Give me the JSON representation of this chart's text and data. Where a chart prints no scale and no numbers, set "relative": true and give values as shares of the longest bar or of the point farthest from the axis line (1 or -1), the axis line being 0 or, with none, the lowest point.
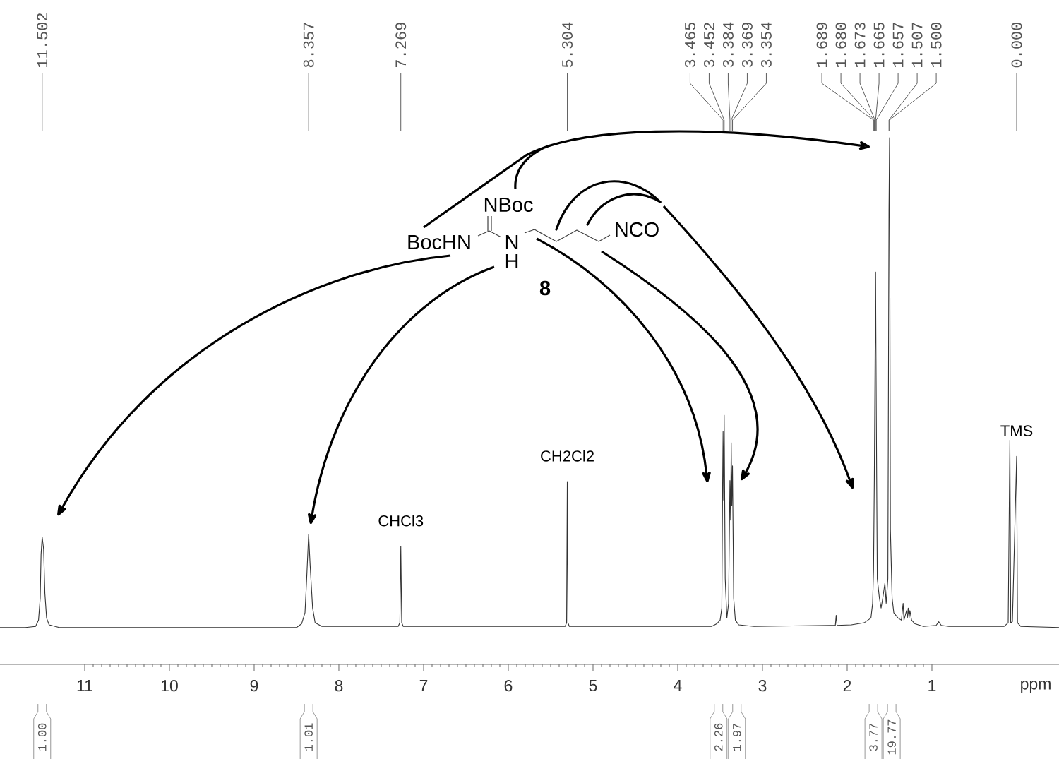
{
  "chart_data": {
    "type": "line",
    "relative": true,
    "xlabel": "ppm",
    "xlim": [
      12.0,
      -0.5
    ],
    "xticks": [
      1,
      2,
      3,
      4,
      5,
      6,
      7,
      8,
      9,
      10,
      11
    ],
    "color": "#333333",
    "x": [
      12.0,
      11.7,
      11.58,
      11.545,
      11.525,
      11.515,
      11.502,
      11.485,
      11.47,
      11.45,
      11.42,
      11.3,
      8.5,
      8.44,
      8.4,
      8.38,
      8.357,
      8.34,
      8.31,
      8.28,
      8.2,
      7.3,
      7.28,
      7.269,
      7.258,
      7.24,
      5.33,
      5.312,
      5.304,
      5.296,
      5.28,
      3.6,
      3.54,
      3.5,
      3.48,
      3.47,
      3.465,
      3.458,
      3.452,
      3.44,
      3.42,
      3.4,
      3.384,
      3.376,
      3.369,
      3.362,
      3.354,
      3.34,
      3.32,
      3.28,
      3.1,
      2.2,
      2.14,
      2.13,
      2.12,
      1.95,
      1.8,
      1.72,
      1.7,
      1.689,
      1.68,
      1.673,
      1.665,
      1.657,
      1.645,
      1.62,
      1.6,
      1.58,
      1.555,
      1.54,
      1.52,
      1.507,
      1.5,
      1.49,
      1.47,
      1.45,
      1.4,
      1.36,
      1.34,
      1.33,
      1.3,
      1.29,
      1.28,
      1.27,
      1.26,
      1.24,
      1.2,
      1.1,
      0.95,
      0.92,
      0.89,
      0.8,
      0.15,
      0.1,
      0.08,
      0.07,
      0.05,
      0.0,
      -0.01,
      -0.05,
      -0.5
    ],
    "values": [
      0.07,
      0.07,
      0.072,
      0.084,
      0.126,
      0.209,
      0.242,
      0.219,
      0.135,
      0.088,
      0.075,
      0.07,
      0.07,
      0.077,
      0.098,
      0.163,
      0.247,
      0.191,
      0.107,
      0.079,
      0.072,
      0.072,
      0.079,
      0.224,
      0.079,
      0.072,
      0.072,
      0.079,
      0.347,
      0.079,
      0.072,
      0.072,
      0.077,
      0.084,
      0.107,
      0.349,
      0.442,
      0.312,
      0.473,
      0.163,
      0.088,
      0.116,
      0.349,
      0.274,
      0.421,
      0.302,
      0.377,
      0.126,
      0.084,
      0.075,
      0.072,
      0.074,
      0.074,
      0.093,
      0.074,
      0.075,
      0.079,
      0.088,
      0.116,
      0.181,
      0.349,
      0.535,
      0.745,
      0.488,
      0.163,
      0.126,
      0.107,
      0.126,
      0.154,
      0.116,
      0.163,
      0.861,
      1.0,
      0.256,
      0.126,
      0.098,
      0.088,
      0.084,
      0.116,
      0.084,
      0.102,
      0.088,
      0.107,
      0.088,
      0.102,
      0.084,
      0.077,
      0.072,
      0.074,
      0.081,
      0.074,
      0.072,
      0.072,
      0.079,
      0.426,
      0.079,
      0.081,
      0.395,
      0.079,
      0.072,
      0.07
    ],
    "annotations": [
      {
        "text": "11.502",
        "x": 11.502
      },
      {
        "text": "8.357",
        "x": 8.357
      },
      {
        "text": "7.269",
        "x": 7.269
      },
      {
        "text": "5.304",
        "x": 5.304
      },
      {
        "text": "3.465",
        "x": 3.465
      },
      {
        "text": "3.452",
        "x": 3.452
      },
      {
        "text": "3.384",
        "x": 3.384
      },
      {
        "text": "3.369",
        "x": 3.369
      },
      {
        "text": "3.354",
        "x": 3.354
      },
      {
        "text": "1.689",
        "x": 1.689
      },
      {
        "text": "1.680",
        "x": 1.68
      },
      {
        "text": "1.673",
        "x": 1.673
      },
      {
        "text": "1.665",
        "x": 1.665
      },
      {
        "text": "1.657",
        "x": 1.657
      },
      {
        "text": "1.507",
        "x": 1.507
      },
      {
        "text": "1.500",
        "x": 1.5
      },
      {
        "text": "0.000",
        "x": 0.0
      },
      "NBoc",
      "BocHN",
      "N",
      "H",
      "NCO",
      "8",
      {
        "text": "CHCl3",
        "x": 7.269,
        "y": 0.224
      },
      {
        "text": "CH2Cl2",
        "x": 5.304,
        "y": 0.347
      },
      {
        "text": "TMS",
        "x": 0.0,
        "y": 0.395
      },
      "1.00",
      "1.01",
      "2.26",
      "1.97",
      "3.77",
      "19.77"
    ]
  }
}
